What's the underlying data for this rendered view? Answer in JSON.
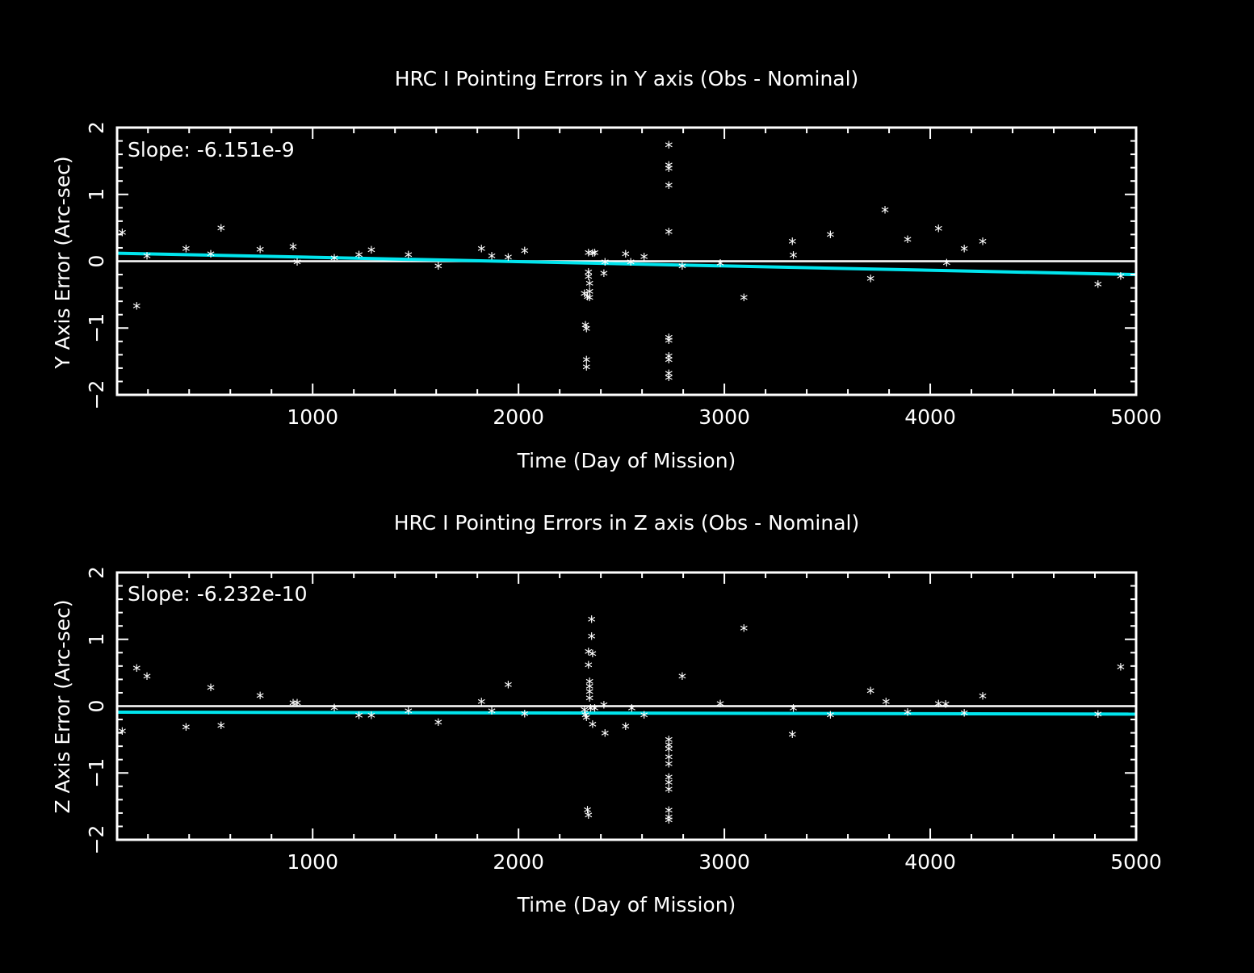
{
  "chart_data": [
    {
      "type": "scatter",
      "title": "HRC I Pointing Errors in Y axis (Obs - Nominal)",
      "xlabel": "Time (Day of Mission)",
      "ylabel": "Y Axis Error (Arc-sec)",
      "xlim": [
        50,
        5000
      ],
      "ylim": [
        -2,
        2
      ],
      "xticks": [
        1000,
        2000,
        3000,
        4000,
        5000
      ],
      "yticks": [
        -2,
        -1,
        0,
        1,
        2
      ],
      "slope_label": "Slope: -6.151e-9",
      "fit_line": {
        "x": [
          50,
          5000
        ],
        "y": [
          0.12,
          -0.2
        ],
        "color": "#00e5ee"
      },
      "zero_line": {
        "y": 0,
        "color": "#ffffff"
      },
      "marker": "*",
      "point_color": "#ffffff",
      "points": [
        [
          75,
          0.41
        ],
        [
          145,
          -0.69
        ],
        [
          195,
          0.06
        ],
        [
          385,
          0.17
        ],
        [
          505,
          0.09
        ],
        [
          555,
          0.48
        ],
        [
          745,
          0.16
        ],
        [
          905,
          0.2
        ],
        [
          925,
          -0.03
        ],
        [
          1105,
          0.03
        ],
        [
          1225,
          0.08
        ],
        [
          1285,
          0.15
        ],
        [
          1465,
          0.08
        ],
        [
          1610,
          -0.09
        ],
        [
          1820,
          0.17
        ],
        [
          1870,
          0.06
        ],
        [
          1950,
          0.04
        ],
        [
          2030,
          0.14
        ],
        [
          2320,
          -0.5
        ],
        [
          2325,
          -0.97
        ],
        [
          2330,
          -1.03
        ],
        [
          2330,
          -1.49
        ],
        [
          2330,
          -1.6
        ],
        [
          2335,
          -0.55
        ],
        [
          2340,
          0.11
        ],
        [
          2340,
          -0.18
        ],
        [
          2340,
          -0.25
        ],
        [
          2345,
          -0.35
        ],
        [
          2345,
          -0.47
        ],
        [
          2345,
          -0.56
        ],
        [
          2360,
          0.1
        ],
        [
          2370,
          0.11
        ],
        [
          2415,
          -0.2
        ],
        [
          2420,
          -0.03
        ],
        [
          2520,
          0.09
        ],
        [
          2545,
          -0.03
        ],
        [
          2610,
          0.05
        ],
        [
          2730,
          1.72
        ],
        [
          2730,
          1.42
        ],
        [
          2730,
          1.37
        ],
        [
          2730,
          1.12
        ],
        [
          2730,
          0.42
        ],
        [
          2730,
          -1.16
        ],
        [
          2730,
          -1.2
        ],
        [
          2730,
          -1.44
        ],
        [
          2730,
          -1.49
        ],
        [
          2730,
          -1.7
        ],
        [
          2730,
          -1.76
        ],
        [
          2795,
          -0.09
        ],
        [
          2980,
          -0.05
        ],
        [
          3095,
          -0.56
        ],
        [
          3330,
          0.28
        ],
        [
          3335,
          0.07
        ],
        [
          3515,
          0.38
        ],
        [
          3710,
          -0.28
        ],
        [
          3780,
          0.75
        ],
        [
          3890,
          0.31
        ],
        [
          4040,
          0.47
        ],
        [
          4080,
          -0.04
        ],
        [
          4165,
          0.17
        ],
        [
          4255,
          0.28
        ],
        [
          4815,
          -0.36
        ],
        [
          4925,
          -0.24
        ]
      ]
    },
    {
      "type": "scatter",
      "title": "HRC I Pointing Errors in  Z axis (Obs - Nominal)",
      "xlabel": "Time (Day of Mission)",
      "ylabel": "Z Axis Error (Arc-sec)",
      "xlim": [
        50,
        5000
      ],
      "ylim": [
        -2,
        2
      ],
      "xticks": [
        1000,
        2000,
        3000,
        4000,
        5000
      ],
      "yticks": [
        -2,
        -1,
        0,
        1,
        2
      ],
      "slope_label": "Slope: -6.232e-10",
      "fit_line": {
        "x": [
          50,
          5000
        ],
        "y": [
          -0.09,
          -0.12
        ],
        "color": "#00e5ee"
      },
      "zero_line": {
        "y": 0,
        "color": "#ffffff"
      },
      "marker": "*",
      "point_color": "#ffffff",
      "points": [
        [
          75,
          -0.39
        ],
        [
          145,
          0.55
        ],
        [
          195,
          0.43
        ],
        [
          385,
          -0.33
        ],
        [
          505,
          0.26
        ],
        [
          555,
          -0.31
        ],
        [
          745,
          0.14
        ],
        [
          905,
          0.03
        ],
        [
          925,
          0.03
        ],
        [
          1105,
          -0.04
        ],
        [
          1225,
          -0.16
        ],
        [
          1285,
          -0.16
        ],
        [
          1465,
          -0.09
        ],
        [
          1610,
          -0.26
        ],
        [
          1820,
          0.05
        ],
        [
          1870,
          -0.09
        ],
        [
          1950,
          0.3
        ],
        [
          2030,
          -0.13
        ],
        [
          2320,
          -0.07
        ],
        [
          2325,
          -0.15
        ],
        [
          2330,
          -0.19
        ],
        [
          2335,
          -1.57
        ],
        [
          2340,
          -1.65
        ],
        [
          2340,
          0.8
        ],
        [
          2340,
          0.6
        ],
        [
          2345,
          0.35
        ],
        [
          2345,
          0.28
        ],
        [
          2345,
          0.2
        ],
        [
          2345,
          0.1
        ],
        [
          2350,
          -0.05
        ],
        [
          2355,
          1.28
        ],
        [
          2355,
          1.03
        ],
        [
          2360,
          0.77
        ],
        [
          2360,
          -0.29
        ],
        [
          2370,
          -0.05
        ],
        [
          2415,
          0.0
        ],
        [
          2420,
          -0.42
        ],
        [
          2520,
          -0.32
        ],
        [
          2550,
          -0.05
        ],
        [
          2610,
          -0.15
        ],
        [
          2730,
          -0.52
        ],
        [
          2730,
          -0.6
        ],
        [
          2730,
          -0.66
        ],
        [
          2730,
          -0.78
        ],
        [
          2730,
          -0.88
        ],
        [
          2730,
          -1.08
        ],
        [
          2730,
          -1.16
        ],
        [
          2730,
          -1.26
        ],
        [
          2730,
          -1.58
        ],
        [
          2730,
          -1.68
        ],
        [
          2730,
          -1.72
        ],
        [
          2795,
          0.43
        ],
        [
          2980,
          0.02
        ],
        [
          3095,
          1.15
        ],
        [
          3330,
          -0.44
        ],
        [
          3335,
          -0.05
        ],
        [
          3515,
          -0.15
        ],
        [
          3710,
          0.21
        ],
        [
          3785,
          0.05
        ],
        [
          3890,
          -0.11
        ],
        [
          4040,
          0.02
        ],
        [
          4075,
          0.01
        ],
        [
          4165,
          -0.12
        ],
        [
          4255,
          0.13
        ],
        [
          4815,
          -0.14
        ],
        [
          4925,
          0.57
        ]
      ]
    }
  ]
}
